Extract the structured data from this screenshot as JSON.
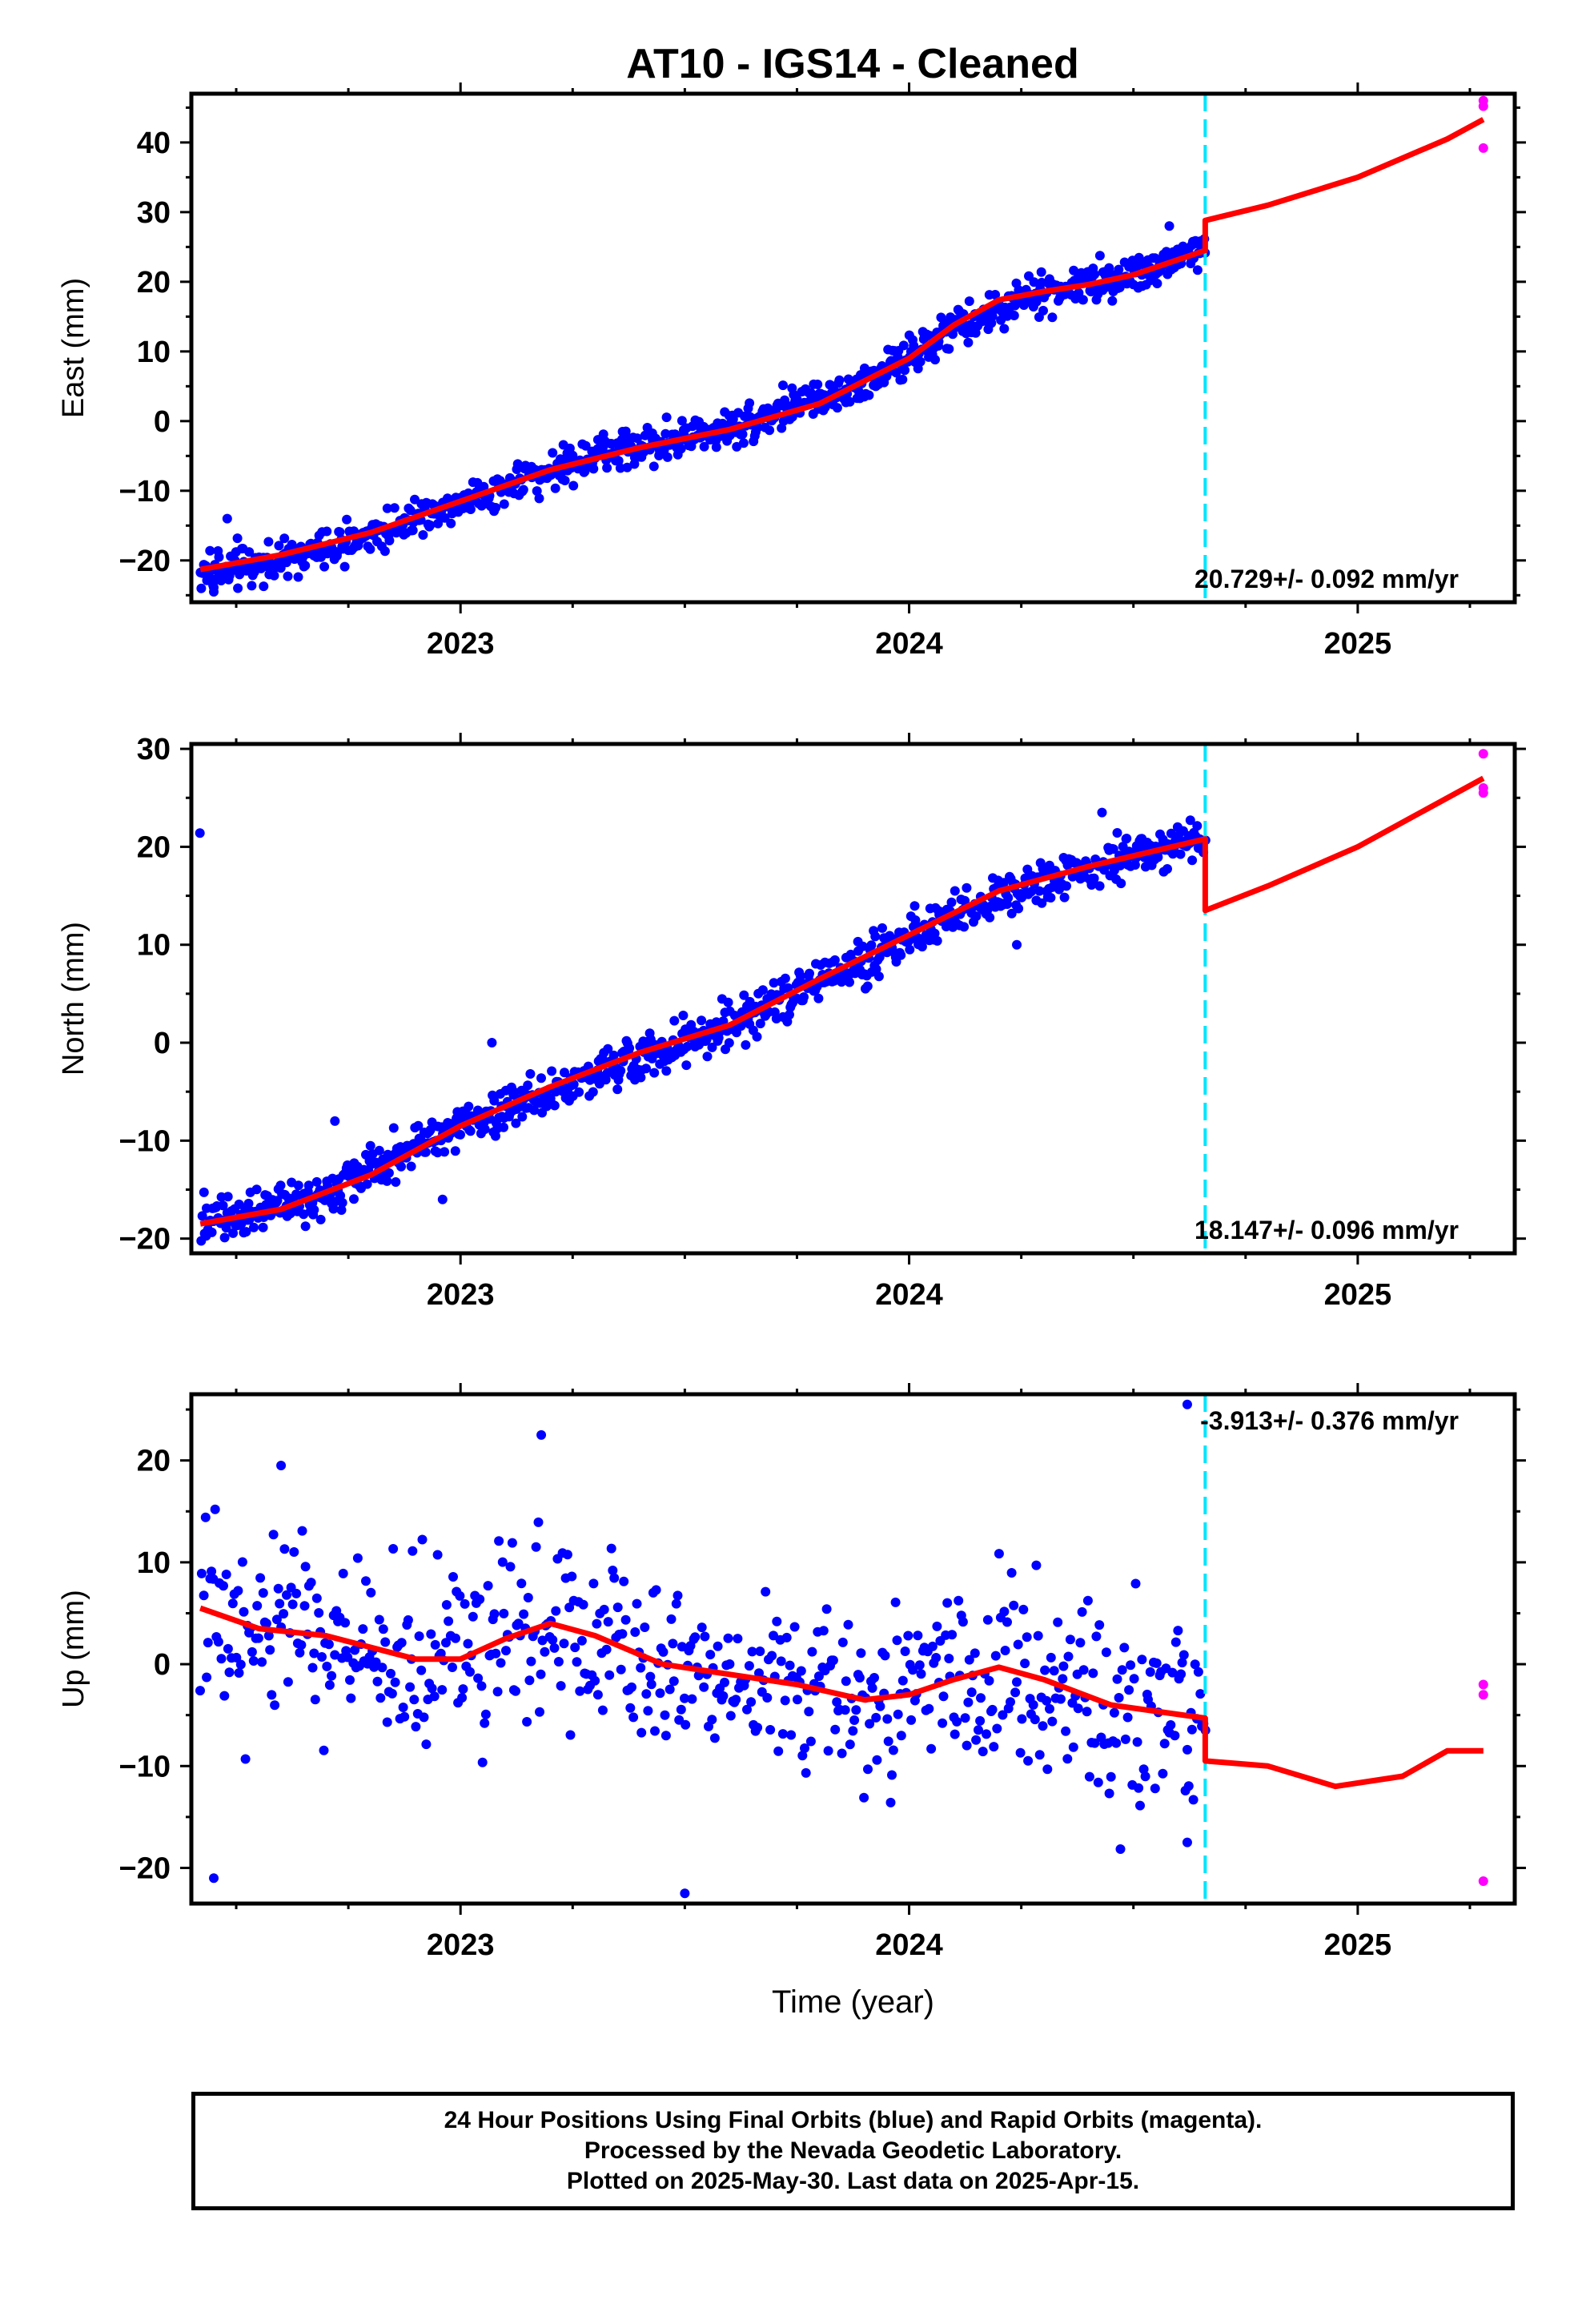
{
  "title": "AT10  - IGS14 - Cleaned",
  "footer": {
    "line1": "24 Hour Positions Using Final Orbits (blue) and Rapid Orbits (magenta).",
    "line2": "Processed by the Nevada Geodetic Laboratory.",
    "line3": "Plotted on 2025-May-30. Last data on 2025-Apr-15."
  },
  "colors": {
    "final_orbits": "#0000ff",
    "rapid_orbits": "#ff00ff",
    "model": "#ff0000",
    "equipment_change": "#00e5ff"
  },
  "chart_data": [
    {
      "type": "scatter",
      "name": "East",
      "ylabel": "East (mm)",
      "xlabel": "",
      "xlim": [
        2022.4,
        2025.35
      ],
      "ylim": [
        -26,
        47
      ],
      "yticks": [
        -20,
        -10,
        0,
        10,
        20,
        30,
        40
      ],
      "xticks": [
        "2023",
        "2024",
        "2025"
      ],
      "rate_label": "20.729+/- 0.092 mm/yr",
      "rate_position": "bottom-right",
      "equipment_change_x": 2024.66,
      "model_curve": [
        [
          2022.42,
          -21.3
        ],
        [
          2022.6,
          -19.2
        ],
        [
          2022.8,
          -16.0
        ],
        [
          2023.0,
          -11.5
        ],
        [
          2023.2,
          -7.0
        ],
        [
          2023.4,
          -3.8
        ],
        [
          2023.6,
          -1.2
        ],
        [
          2023.8,
          2.5
        ],
        [
          2024.0,
          9.0
        ],
        [
          2024.1,
          13.8
        ],
        [
          2024.2,
          17.4
        ],
        [
          2024.3,
          18.6
        ],
        [
          2024.4,
          19.6
        ],
        [
          2024.5,
          21.0
        ],
        [
          2024.66,
          24.5
        ],
        [
          2024.66,
          28.8
        ],
        [
          2024.8,
          31.0
        ],
        [
          2025.0,
          35.0
        ],
        [
          2025.2,
          40.5
        ],
        [
          2025.28,
          43.3
        ]
      ],
      "final_trend": [
        [
          2022.42,
          -22.0
        ],
        [
          2022.7,
          -18.5
        ],
        [
          2023.0,
          -11.5
        ],
        [
          2023.3,
          -5.0
        ],
        [
          2023.6,
          -1.0
        ],
        [
          2023.9,
          5.5
        ],
        [
          2024.1,
          13.0
        ],
        [
          2024.3,
          18.5
        ],
        [
          2024.5,
          21.0
        ],
        [
          2024.66,
          24.8
        ]
      ],
      "final_scatter_mm": 2.0,
      "final_outliers": [
        [
          2022.45,
          -24.5
        ],
        [
          2023.9,
          3.5
        ],
        [
          2024.58,
          28.0
        ],
        [
          2022.48,
          -14.0
        ]
      ],
      "rapid_points": [
        [
          2025.28,
          45.2
        ],
        [
          2025.28,
          46.0
        ],
        [
          2025.28,
          39.2
        ]
      ]
    },
    {
      "type": "scatter",
      "name": "North",
      "ylabel": "North (mm)",
      "xlabel": "",
      "xlim": [
        2022.4,
        2025.35
      ],
      "ylim": [
        -21.5,
        30.5
      ],
      "yticks": [
        -20,
        -10,
        0,
        10,
        20,
        30
      ],
      "xticks": [
        "2023",
        "2024",
        "2025"
      ],
      "rate_label": "18.147+/- 0.096 mm/yr",
      "rate_position": "bottom-right",
      "equipment_change_x": 2024.66,
      "model_curve": [
        [
          2022.42,
          -18.5
        ],
        [
          2022.6,
          -17.0
        ],
        [
          2022.8,
          -13.5
        ],
        [
          2023.0,
          -8.5
        ],
        [
          2023.2,
          -4.5
        ],
        [
          2023.4,
          -1.0
        ],
        [
          2023.6,
          1.8
        ],
        [
          2023.8,
          6.5
        ],
        [
          2024.0,
          11.0
        ],
        [
          2024.2,
          15.5
        ],
        [
          2024.4,
          18.0
        ],
        [
          2024.66,
          20.8
        ],
        [
          2024.66,
          13.5
        ],
        [
          2024.8,
          16.0
        ],
        [
          2025.0,
          20.0
        ],
        [
          2025.28,
          27.0
        ]
      ],
      "final_trend": [
        [
          2022.42,
          -18.0
        ],
        [
          2022.7,
          -15.5
        ],
        [
          2023.0,
          -8.5
        ],
        [
          2023.3,
          -3.0
        ],
        [
          2023.6,
          1.5
        ],
        [
          2023.9,
          8.5
        ],
        [
          2024.1,
          13.0
        ],
        [
          2024.3,
          16.5
        ],
        [
          2024.5,
          19.0
        ],
        [
          2024.66,
          21.0
        ]
      ],
      "final_scatter_mm": 1.6,
      "final_outliers": [
        [
          2022.72,
          -8.0
        ],
        [
          2023.07,
          0.0
        ],
        [
          2022.96,
          -16.0
        ],
        [
          2024.24,
          10.0
        ],
        [
          2024.43,
          23.5
        ]
      ],
      "rapid_points": [
        [
          2025.28,
          29.5
        ],
        [
          2025.28,
          26.0
        ],
        [
          2025.28,
          25.5
        ]
      ]
    },
    {
      "type": "scatter",
      "name": "Up",
      "ylabel": "Up (mm)",
      "xlabel": "Time (year)",
      "xlim": [
        2022.4,
        2025.35
      ],
      "ylim": [
        -23.5,
        26.5
      ],
      "yticks": [
        -20,
        -10,
        0,
        10,
        20
      ],
      "xticks": [
        "2023",
        "2024",
        "2025"
      ],
      "rate_label": "-3.913+/- 0.376 mm/yr",
      "rate_position": "top-right",
      "equipment_change_x": 2024.66,
      "model_curve": [
        [
          2022.42,
          5.5
        ],
        [
          2022.55,
          3.5
        ],
        [
          2022.7,
          2.8
        ],
        [
          2022.9,
          0.5
        ],
        [
          2023.0,
          0.5
        ],
        [
          2023.1,
          2.5
        ],
        [
          2023.2,
          4.0
        ],
        [
          2023.3,
          2.8
        ],
        [
          2023.45,
          0.0
        ],
        [
          2023.6,
          -1.0
        ],
        [
          2023.75,
          -2.0
        ],
        [
          2023.9,
          -3.5
        ],
        [
          2024.0,
          -3.0
        ],
        [
          2024.1,
          -1.5
        ],
        [
          2024.2,
          -0.3
        ],
        [
          2024.3,
          -1.5
        ],
        [
          2024.45,
          -4.0
        ],
        [
          2024.66,
          -5.3
        ],
        [
          2024.66,
          -9.5
        ],
        [
          2024.8,
          -10.0
        ],
        [
          2024.95,
          -12.0
        ],
        [
          2025.1,
          -11.0
        ],
        [
          2025.2,
          -8.5
        ],
        [
          2025.28,
          -8.5
        ]
      ],
      "final_trend": [
        [
          2022.42,
          5.0
        ],
        [
          2022.7,
          2.8
        ],
        [
          2022.95,
          0.2
        ],
        [
          2023.2,
          3.8
        ],
        [
          2023.45,
          0.0
        ],
        [
          2023.7,
          -1.5
        ],
        [
          2023.95,
          -3.5
        ],
        [
          2024.2,
          -0.5
        ],
        [
          2024.45,
          -4.0
        ],
        [
          2024.66,
          -5.0
        ]
      ],
      "final_scatter_mm": 6.5,
      "final_outliers": [
        [
          2023.5,
          -22.5
        ],
        [
          2023.18,
          22.5
        ],
        [
          2022.45,
          -21.0
        ],
        [
          2022.6,
          19.5
        ],
        [
          2024.62,
          25.5
        ],
        [
          2024.62,
          -17.5
        ]
      ],
      "rapid_points": [
        [
          2025.28,
          -2.0
        ],
        [
          2025.28,
          -3.0
        ],
        [
          2025.28,
          -21.3
        ]
      ]
    }
  ]
}
